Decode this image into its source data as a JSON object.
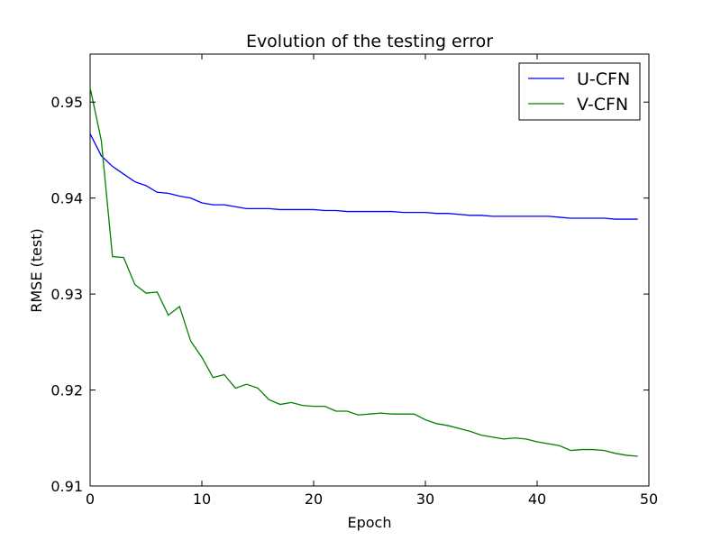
{
  "chart_data": {
    "type": "line",
    "title": "Evolution of the testing error",
    "xlabel": "Epoch",
    "ylabel": "RMSE (test)",
    "xlim": [
      0,
      50
    ],
    "ylim": [
      0.91,
      0.955
    ],
    "xticks": [
      0,
      10,
      20,
      30,
      40,
      50
    ],
    "yticks": [
      0.91,
      0.92,
      0.93,
      0.94,
      0.95
    ],
    "xtick_labels": [
      "0",
      "10",
      "20",
      "30",
      "40",
      "50"
    ],
    "ytick_labels": [
      "0.91",
      "0.92",
      "0.93",
      "0.94",
      "0.95"
    ],
    "grid": false,
    "legend_position": "top-right",
    "x": [
      0,
      1,
      2,
      3,
      4,
      5,
      6,
      7,
      8,
      9,
      10,
      11,
      12,
      13,
      14,
      15,
      16,
      17,
      18,
      19,
      20,
      21,
      22,
      23,
      24,
      25,
      26,
      27,
      28,
      29,
      30,
      31,
      32,
      33,
      34,
      35,
      36,
      37,
      38,
      39,
      40,
      41,
      42,
      43,
      44,
      45,
      46,
      47,
      48,
      49
    ],
    "series": [
      {
        "name": "U-CFN",
        "color": "#0000ff",
        "values": [
          0.9467,
          0.9444,
          0.9433,
          0.9425,
          0.9417,
          0.9413,
          0.9406,
          0.9405,
          0.9402,
          0.94,
          0.9395,
          0.9393,
          0.9393,
          0.9391,
          0.9389,
          0.9389,
          0.9389,
          0.9388,
          0.9388,
          0.9388,
          0.9388,
          0.9387,
          0.9387,
          0.9386,
          0.9386,
          0.9386,
          0.9386,
          0.9386,
          0.9385,
          0.9385,
          0.9385,
          0.9384,
          0.9384,
          0.9383,
          0.9382,
          0.9382,
          0.9381,
          0.9381,
          0.9381,
          0.9381,
          0.9381,
          0.9381,
          0.938,
          0.9379,
          0.9379,
          0.9379,
          0.9379,
          0.9378,
          0.9378,
          0.9378
        ]
      },
      {
        "name": "V-CFN",
        "color": "#008000",
        "values": [
          0.9515,
          0.946,
          0.9339,
          0.9338,
          0.931,
          0.9301,
          0.9302,
          0.9278,
          0.9287,
          0.9251,
          0.9234,
          0.9213,
          0.9216,
          0.9202,
          0.9206,
          0.9202,
          0.919,
          0.9185,
          0.9187,
          0.9184,
          0.9183,
          0.9183,
          0.9178,
          0.9178,
          0.9174,
          0.9175,
          0.9176,
          0.9175,
          0.9175,
          0.9175,
          0.9169,
          0.9165,
          0.9163,
          0.916,
          0.9157,
          0.9153,
          0.9151,
          0.9149,
          0.915,
          0.9149,
          0.9146,
          0.9144,
          0.9142,
          0.9137,
          0.9138,
          0.9138,
          0.9137,
          0.9134,
          0.9132,
          0.9131
        ]
      }
    ]
  }
}
